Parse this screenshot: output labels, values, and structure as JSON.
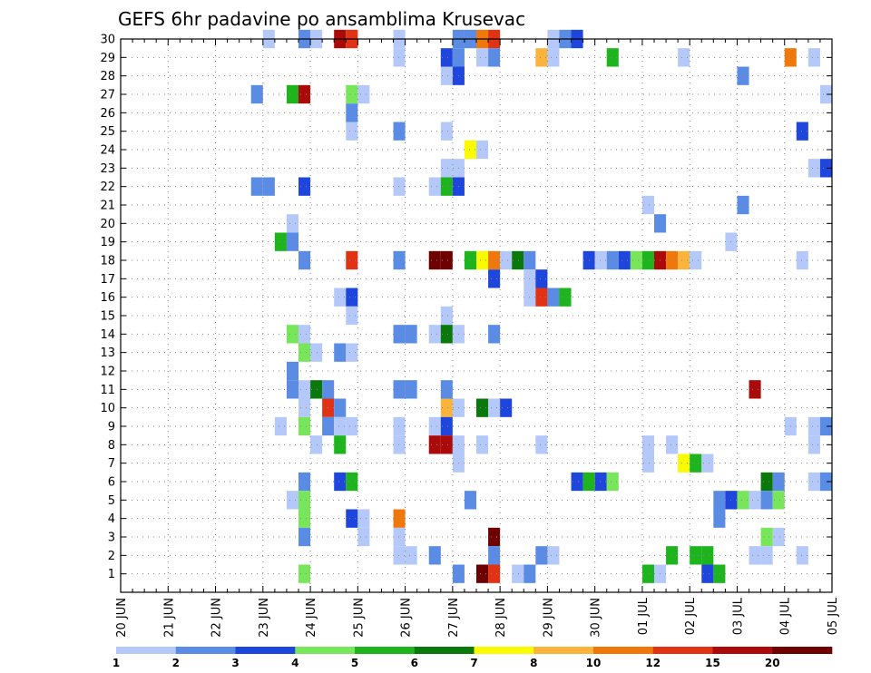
{
  "chart_data": {
    "type": "heatmap",
    "title": "GEFS 6hr padavine po ansamblima Krusevac",
    "xlabel": "",
    "ylabel": "",
    "x_tick_labels": [
      "20 JUN",
      "21 JUN",
      "22 JUN",
      "23 JUN",
      "24 JUN",
      "25 JUN",
      "26 JUN",
      "27 JUN",
      "28 JUN",
      "29 JUN",
      "30 JUN",
      "01 JUL",
      "02 JUL",
      "03 JUL",
      "04 JUL",
      "05 JUL"
    ],
    "x_unit": "6-hour step (4 steps per day), step 0 = 20 JUN 00Z",
    "xlim": [
      0,
      60
    ],
    "y_tick_labels": [
      "1",
      "2",
      "3",
      "4",
      "5",
      "6",
      "7",
      "8",
      "9",
      "10",
      "11",
      "12",
      "13",
      "14",
      "15",
      "16",
      "17",
      "18",
      "19",
      "20",
      "21",
      "22",
      "23",
      "24",
      "25",
      "26",
      "27",
      "28",
      "29",
      "30"
    ],
    "ylim": [
      0,
      30
    ],
    "grid": true,
    "legend": {
      "placement": "bottom",
      "labels": [
        "1",
        "2",
        "3",
        "4",
        "5",
        "6",
        "7",
        "8",
        "10",
        "12",
        "15",
        "20"
      ],
      "colors": [
        "#b4c8fa",
        "#5a8ce6",
        "#1e46dc",
        "#78e65a",
        "#1eb41e",
        "#0a780a",
        "#fafa00",
        "#fab43c",
        "#f0780a",
        "#e13214",
        "#aa0a0a",
        "#6e0000"
      ]
    },
    "cells": [
      [
        12.5,
        30,
        1
      ],
      [
        15.5,
        30,
        2
      ],
      [
        16.5,
        30,
        1
      ],
      [
        18.5,
        30,
        11
      ],
      [
        19.5,
        30,
        10
      ],
      [
        23.5,
        30,
        1
      ],
      [
        28.5,
        30,
        2
      ],
      [
        29.5,
        30,
        2
      ],
      [
        30.5,
        30,
        9
      ],
      [
        31.5,
        30,
        10
      ],
      [
        36.5,
        30,
        1
      ],
      [
        37.5,
        30,
        2
      ],
      [
        38.5,
        30,
        3
      ],
      [
        23.5,
        29,
        1
      ],
      [
        27.5,
        29,
        3
      ],
      [
        28.5,
        29,
        2
      ],
      [
        30.5,
        29,
        1
      ],
      [
        31.5,
        29,
        2
      ],
      [
        35.5,
        29,
        8
      ],
      [
        36.5,
        29,
        1
      ],
      [
        41.5,
        29,
        5
      ],
      [
        47.5,
        29,
        1
      ],
      [
        56.5,
        29,
        9
      ],
      [
        58.5,
        29,
        1
      ],
      [
        27.5,
        28,
        1
      ],
      [
        28.5,
        28,
        3
      ],
      [
        52.5,
        28,
        2
      ],
      [
        11.5,
        27,
        2
      ],
      [
        14.5,
        27,
        5
      ],
      [
        15.5,
        27,
        11
      ],
      [
        19.5,
        27,
        4
      ],
      [
        20.5,
        27,
        1
      ],
      [
        59.5,
        27,
        1
      ],
      [
        19.5,
        26,
        2
      ],
      [
        19.5,
        25,
        1
      ],
      [
        23.5,
        25,
        2
      ],
      [
        27.5,
        25,
        1
      ],
      [
        57.5,
        25,
        3
      ],
      [
        29.5,
        24,
        7
      ],
      [
        30.5,
        24,
        1
      ],
      [
        27.5,
        23,
        1
      ],
      [
        28.5,
        23,
        1
      ],
      [
        58.5,
        23,
        1
      ],
      [
        59.5,
        23,
        3
      ],
      [
        11.5,
        22,
        2
      ],
      [
        12.5,
        22,
        2
      ],
      [
        15.5,
        22,
        3
      ],
      [
        23.5,
        22,
        1
      ],
      [
        26.5,
        22,
        1
      ],
      [
        27.5,
        22,
        5
      ],
      [
        28.5,
        22,
        3
      ],
      [
        44.5,
        21,
        1
      ],
      [
        52.5,
        21,
        2
      ],
      [
        14.5,
        20,
        1
      ],
      [
        45.5,
        20,
        2
      ],
      [
        13.5,
        19,
        5
      ],
      [
        14.5,
        19,
        2
      ],
      [
        51.5,
        19,
        1
      ],
      [
        15.5,
        18,
        2
      ],
      [
        19.5,
        18,
        10
      ],
      [
        23.5,
        18,
        2
      ],
      [
        26.5,
        18,
        12
      ],
      [
        27.5,
        18,
        12
      ],
      [
        29.5,
        18,
        5
      ],
      [
        30.5,
        18,
        7
      ],
      [
        31.5,
        18,
        9
      ],
      [
        32.5,
        18,
        1
      ],
      [
        33.5,
        18,
        6
      ],
      [
        34.5,
        18,
        2
      ],
      [
        39.5,
        18,
        3
      ],
      [
        40.5,
        18,
        1
      ],
      [
        41.5,
        18,
        2
      ],
      [
        42.5,
        18,
        3
      ],
      [
        43.5,
        18,
        4
      ],
      [
        44.5,
        18,
        5
      ],
      [
        45.5,
        18,
        11
      ],
      [
        46.5,
        18,
        9
      ],
      [
        47.5,
        18,
        8
      ],
      [
        48.5,
        18,
        1
      ],
      [
        57.5,
        18,
        1
      ],
      [
        31.5,
        17,
        3
      ],
      [
        34.5,
        17,
        1
      ],
      [
        35.5,
        17,
        3
      ],
      [
        18.5,
        16,
        1
      ],
      [
        19.5,
        16,
        3
      ],
      [
        34.5,
        16,
        1
      ],
      [
        35.5,
        16,
        10
      ],
      [
        36.5,
        16,
        2
      ],
      [
        37.5,
        16,
        5
      ],
      [
        19.5,
        15,
        1
      ],
      [
        27.5,
        15,
        1
      ],
      [
        14.5,
        14,
        4
      ],
      [
        15.5,
        14,
        1
      ],
      [
        23.5,
        14,
        2
      ],
      [
        24.5,
        14,
        2
      ],
      [
        26.5,
        14,
        1
      ],
      [
        27.5,
        14,
        6
      ],
      [
        28.5,
        14,
        1
      ],
      [
        31.5,
        14,
        2
      ],
      [
        15.5,
        13,
        4
      ],
      [
        16.5,
        13,
        1
      ],
      [
        18.5,
        13,
        2
      ],
      [
        19.5,
        13,
        1
      ],
      [
        14.5,
        12,
        2
      ],
      [
        14.5,
        11,
        2
      ],
      [
        15.5,
        11,
        1
      ],
      [
        16.5,
        11,
        6
      ],
      [
        17.5,
        11,
        2
      ],
      [
        23.5,
        11,
        2
      ],
      [
        24.5,
        11,
        2
      ],
      [
        27.5,
        11,
        2
      ],
      [
        53.5,
        11,
        11
      ],
      [
        15.5,
        10,
        1
      ],
      [
        17.5,
        10,
        10
      ],
      [
        18.5,
        10,
        2
      ],
      [
        27.5,
        10,
        8
      ],
      [
        28.5,
        10,
        1
      ],
      [
        30.5,
        10,
        6
      ],
      [
        31.5,
        10,
        1
      ],
      [
        32.5,
        10,
        3
      ],
      [
        13.5,
        9,
        1
      ],
      [
        15.5,
        9,
        4
      ],
      [
        17.5,
        9,
        2
      ],
      [
        18.5,
        9,
        1
      ],
      [
        19.5,
        9,
        1
      ],
      [
        23.5,
        9,
        1
      ],
      [
        26.5,
        9,
        1
      ],
      [
        27.5,
        9,
        3
      ],
      [
        56.5,
        9,
        1
      ],
      [
        58.5,
        9,
        1
      ],
      [
        59.5,
        9,
        2
      ],
      [
        16.5,
        8,
        1
      ],
      [
        18.5,
        8,
        5
      ],
      [
        23.5,
        8,
        1
      ],
      [
        26.5,
        8,
        11
      ],
      [
        27.5,
        8,
        11
      ],
      [
        28.5,
        8,
        1
      ],
      [
        30.5,
        8,
        1
      ],
      [
        35.5,
        8,
        1
      ],
      [
        44.5,
        8,
        1
      ],
      [
        46.5,
        8,
        1
      ],
      [
        58.5,
        8,
        1
      ],
      [
        28.5,
        7,
        1
      ],
      [
        44.5,
        7,
        1
      ],
      [
        47.5,
        7,
        7
      ],
      [
        48.5,
        7,
        5
      ],
      [
        49.5,
        7,
        1
      ],
      [
        15.5,
        6,
        2
      ],
      [
        18.5,
        6,
        3
      ],
      [
        19.5,
        6,
        5
      ],
      [
        38.5,
        6,
        3
      ],
      [
        39.5,
        6,
        5
      ],
      [
        40.5,
        6,
        3
      ],
      [
        41.5,
        6,
        4
      ],
      [
        54.5,
        6,
        6
      ],
      [
        55.5,
        6,
        2
      ],
      [
        58.5,
        6,
        1
      ],
      [
        59.5,
        6,
        2
      ],
      [
        14.5,
        5,
        1
      ],
      [
        15.5,
        5,
        4
      ],
      [
        29.5,
        5,
        2
      ],
      [
        50.5,
        5,
        2
      ],
      [
        51.5,
        5,
        3
      ],
      [
        52.5,
        5,
        4
      ],
      [
        53.5,
        5,
        1
      ],
      [
        54.5,
        5,
        2
      ],
      [
        55.5,
        5,
        4
      ],
      [
        15.5,
        4,
        4
      ],
      [
        19.5,
        4,
        3
      ],
      [
        20.5,
        4,
        1
      ],
      [
        23.5,
        4,
        9
      ],
      [
        50.5,
        4,
        2
      ],
      [
        15.5,
        3,
        2
      ],
      [
        20.5,
        3,
        1
      ],
      [
        23.5,
        3,
        1
      ],
      [
        31.5,
        3,
        12
      ],
      [
        54.5,
        3,
        4
      ],
      [
        55.5,
        3,
        1
      ],
      [
        23.5,
        2,
        1
      ],
      [
        24.5,
        2,
        1
      ],
      [
        26.5,
        2,
        2
      ],
      [
        31.5,
        2,
        2
      ],
      [
        35.5,
        2,
        2
      ],
      [
        36.5,
        2,
        1
      ],
      [
        46.5,
        2,
        5
      ],
      [
        48.5,
        2,
        5
      ],
      [
        49.5,
        2,
        5
      ],
      [
        53.5,
        2,
        1
      ],
      [
        54.5,
        2,
        1
      ],
      [
        57.5,
        2,
        1
      ],
      [
        15.5,
        1,
        4
      ],
      [
        28.5,
        1,
        2
      ],
      [
        30.5,
        1,
        12
      ],
      [
        31.5,
        1,
        10
      ],
      [
        33.5,
        1,
        1
      ],
      [
        34.5,
        1,
        2
      ],
      [
        44.5,
        1,
        5
      ],
      [
        45.5,
        1,
        1
      ],
      [
        49.5,
        1,
        3
      ],
      [
        50.5,
        1,
        5
      ]
    ]
  }
}
